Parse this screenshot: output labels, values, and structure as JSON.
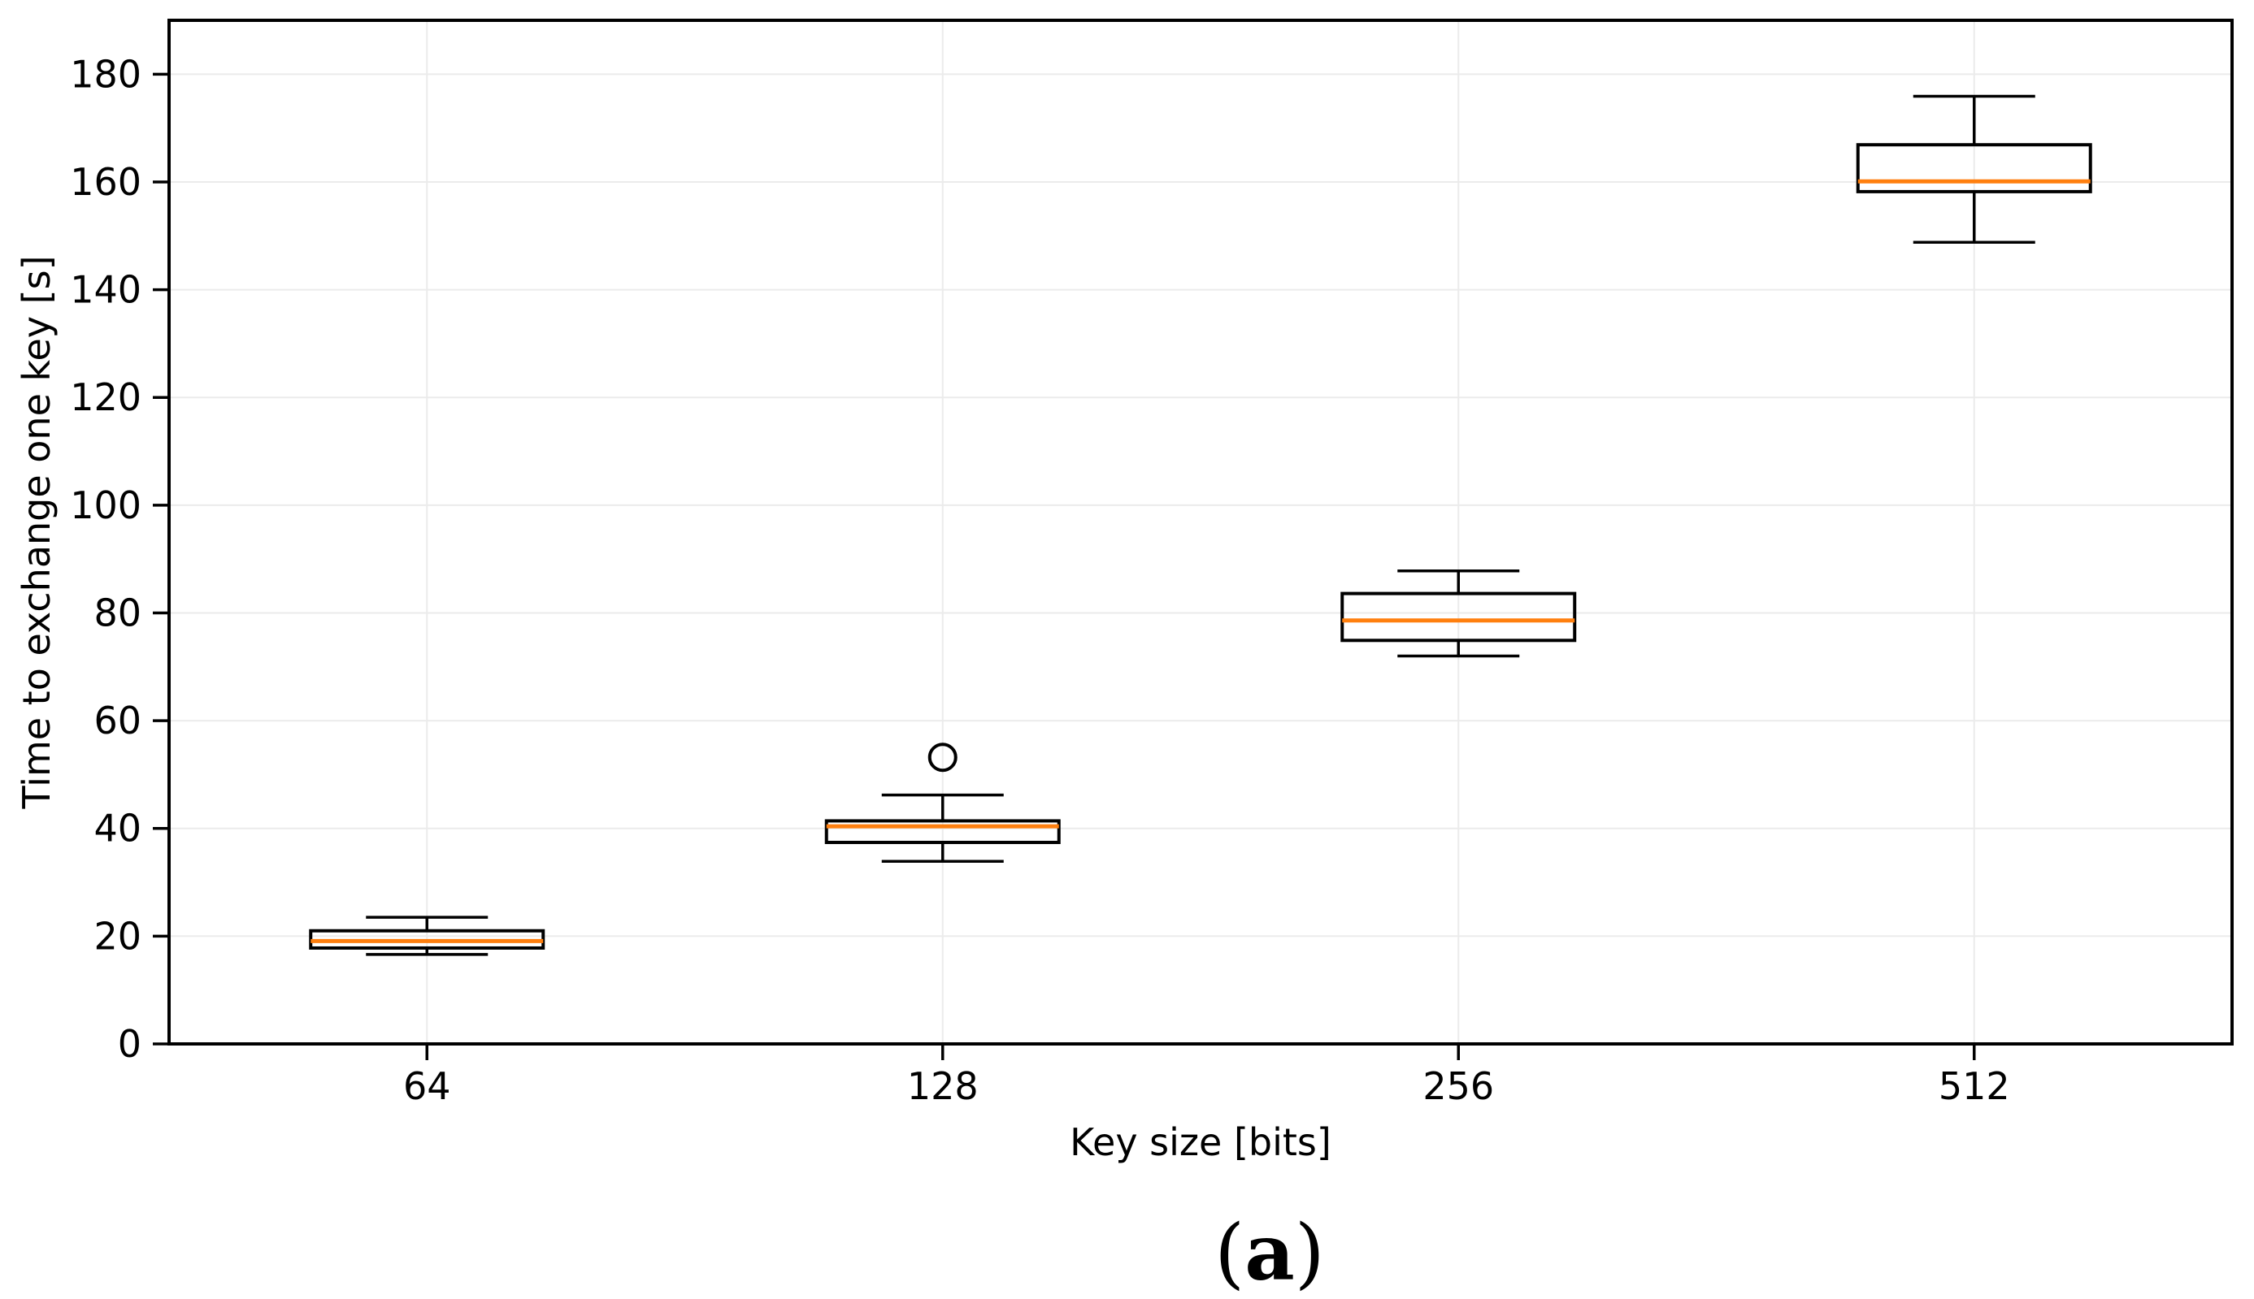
{
  "figure": {
    "background": "#ffffff"
  },
  "caption": {
    "open": "(",
    "label": "a",
    "close": ")"
  },
  "chart_data": {
    "type": "box",
    "title": "",
    "xlabel": "Key size [bits]",
    "ylabel": "Time to exchange one key [s]",
    "categories": [
      "64",
      "128",
      "256",
      "512"
    ],
    "ylim": [
      0,
      190
    ],
    "yticks": [
      0,
      20,
      40,
      60,
      80,
      100,
      120,
      140,
      160,
      180
    ],
    "grid": true,
    "legend_position": "none",
    "colors": {
      "median": "#ff7f0e",
      "box": "#000000",
      "whisker": "#000000",
      "grid": "#ebebeb",
      "frame": "#000000",
      "text": "#000000",
      "background": "#ffffff"
    },
    "series": [
      {
        "category": "64",
        "whisker_low": 16.6,
        "q1": 17.8,
        "median": 19.1,
        "q3": 21.0,
        "whisker_high": 23.5,
        "outliers": []
      },
      {
        "category": "128",
        "whisker_low": 33.9,
        "q1": 37.4,
        "median": 40.4,
        "q3": 41.4,
        "whisker_high": 46.2,
        "outliers": [
          53.2
        ]
      },
      {
        "category": "256",
        "whisker_low": 72.0,
        "q1": 74.9,
        "median": 78.6,
        "q3": 83.6,
        "whisker_high": 87.8,
        "outliers": []
      },
      {
        "category": "512",
        "whisker_low": 148.8,
        "q1": 158.2,
        "median": 160.1,
        "q3": 166.9,
        "whisker_high": 175.9,
        "outliers": []
      }
    ]
  }
}
